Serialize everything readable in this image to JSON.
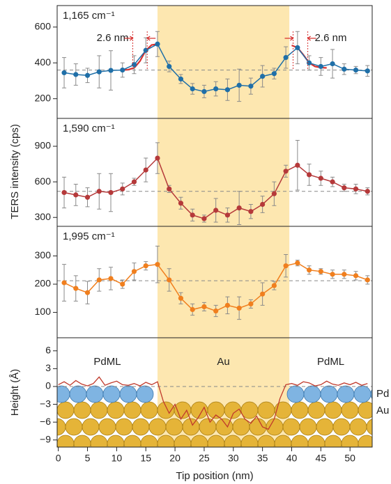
{
  "chart_data": [
    {
      "type": "line",
      "title": "1,165 cm⁻¹",
      "color": "#1f6fa8",
      "x": [
        1,
        3,
        5,
        7,
        9,
        11,
        13,
        15,
        17,
        19,
        21,
        23,
        25,
        27,
        29,
        31,
        33,
        35,
        37,
        39,
        41,
        43,
        45,
        47,
        49,
        51,
        53
      ],
      "values": [
        345,
        335,
        330,
        350,
        358,
        360,
        390,
        470,
        505,
        380,
        310,
        255,
        240,
        255,
        250,
        275,
        270,
        325,
        340,
        430,
        485,
        400,
        380,
        395,
        365,
        360,
        355
      ],
      "errors": [
        85,
        60,
        40,
        90,
        110,
        40,
        50,
        70,
        70,
        30,
        25,
        30,
        35,
        40,
        60,
        90,
        45,
        60,
        30,
        60,
        90,
        40,
        50,
        80,
        30,
        20,
        30
      ],
      "fits": [
        {
          "color": "#d7302f",
          "x": [
            11,
            12,
            13,
            14,
            15,
            16,
            17
          ],
          "values": [
            360,
            362,
            372,
            410,
            470,
            500,
            505
          ]
        },
        {
          "color": "#d7302f",
          "x": [
            40,
            41,
            42,
            43,
            44,
            45,
            46
          ],
          "values": [
            498,
            485,
            445,
            400,
            380,
            374,
            372
          ]
        }
      ],
      "annotations": [
        "2.6 nm",
        "2.6 nm"
      ],
      "reference_y": 360,
      "shaded_x": [
        17,
        39.6
      ],
      "xlim": [
        -0.2,
        53.8
      ],
      "ylim": [
        90,
        720
      ],
      "yticks": [
        200,
        400,
        600
      ]
    },
    {
      "type": "line",
      "title": "1,590 cm⁻¹",
      "color": "#b5393a",
      "ylabel": "TERS intensity (cps)",
      "x": [
        1,
        3,
        5,
        7,
        9,
        11,
        13,
        15,
        17,
        19,
        21,
        23,
        25,
        27,
        29,
        31,
        33,
        35,
        37,
        39,
        41,
        43,
        45,
        47,
        49,
        51,
        53
      ],
      "values": [
        510,
        490,
        470,
        520,
        510,
        540,
        600,
        700,
        800,
        540,
        420,
        320,
        290,
        360,
        320,
        380,
        350,
        410,
        500,
        690,
        740,
        660,
        630,
        600,
        550,
        540,
        520
      ],
      "errors": [
        130,
        90,
        80,
        150,
        160,
        50,
        30,
        100,
        130,
        30,
        50,
        50,
        30,
        100,
        60,
        140,
        60,
        70,
        100,
        50,
        210,
        90,
        60,
        40,
        30,
        40,
        30
      ],
      "reference_y": 520,
      "shaded_x": [
        17,
        39.6
      ],
      "xlim": [
        -0.2,
        53.8
      ],
      "ylim": [
        225,
        1135
      ],
      "yticks": [
        300,
        600,
        900
      ]
    },
    {
      "type": "line",
      "title": "1,995 cm⁻¹",
      "color": "#f07f1e",
      "x": [
        1,
        3,
        5,
        7,
        9,
        11,
        13,
        15,
        17,
        19,
        21,
        23,
        25,
        27,
        29,
        31,
        33,
        35,
        37,
        39,
        41,
        43,
        45,
        47,
        49,
        51,
        53
      ],
      "values": [
        205,
        185,
        170,
        215,
        220,
        200,
        245,
        265,
        270,
        215,
        150,
        110,
        120,
        105,
        125,
        115,
        130,
        165,
        195,
        265,
        275,
        250,
        245,
        235,
        235,
        230,
        215
      ],
      "errors": [
        65,
        45,
        40,
        40,
        40,
        15,
        30,
        15,
        65,
        40,
        20,
        20,
        15,
        20,
        30,
        40,
        15,
        40,
        15,
        40,
        10,
        15,
        10,
        15,
        15,
        15,
        15
      ],
      "reference_y": 212,
      "shaded_x": [
        17,
        39.6
      ],
      "xlim": [
        -0.2,
        53.8
      ],
      "ylim": [
        10,
        405
      ],
      "yticks": [
        100,
        200,
        300
      ]
    },
    {
      "type": "profile",
      "color": "#c0392b",
      "ylabel": "Height (Å)",
      "xlabel": "Tip position (nm)",
      "x": [
        0,
        1,
        2,
        3,
        4,
        5,
        6,
        7,
        8,
        9,
        10,
        11,
        12,
        13,
        14,
        15,
        16,
        17,
        18,
        19,
        20,
        21,
        22,
        23,
        24,
        25,
        26,
        27,
        28,
        29,
        30,
        31,
        32,
        33,
        34,
        35,
        36,
        37,
        38,
        39,
        40,
        41,
        42,
        43,
        44,
        45,
        46,
        47,
        48,
        49,
        50,
        51,
        52,
        53
      ],
      "values": [
        0.3,
        0.8,
        0.2,
        1.0,
        0.4,
        0.1,
        0.5,
        1.6,
        0.2,
        0.6,
        0.9,
        0.3,
        0.2,
        0.5,
        0.1,
        0.7,
        0.3,
        0.8,
        -2.5,
        -4.5,
        -3.0,
        -5.5,
        -4.0,
        -6.5,
        -5.2,
        -3.5,
        -6.0,
        -4.8,
        -5.5,
        -6.8,
        -4.5,
        -3.8,
        -5.5,
        -6.2,
        -5.0,
        -6.8,
        -7.2,
        -5.5,
        -2.0,
        0.3,
        0.5,
        0.2,
        0.8,
        0.6,
        0.1,
        0.3,
        0.9,
        0.4,
        0.2,
        0.6,
        0.3,
        0.7,
        0.2,
        0.5
      ],
      "region_labels": [
        "PdML",
        "Au",
        "PdML"
      ],
      "layer_labels": [
        "Pd",
        "Au"
      ],
      "reference_y": 0,
      "shaded_x": [
        17,
        39.6
      ],
      "xlim": [
        -0.2,
        53.8
      ],
      "ylim": [
        -10.2,
        8.2
      ],
      "yticks": [
        6,
        3,
        0,
        {
          "value": -3,
          "label": "−3"
        },
        {
          "value": -6,
          "label": "−6"
        },
        {
          "value": -9,
          "label": "−9"
        }
      ],
      "xticks": [
        0,
        5,
        10,
        15,
        20,
        25,
        30,
        35,
        40,
        45,
        50
      ]
    }
  ]
}
